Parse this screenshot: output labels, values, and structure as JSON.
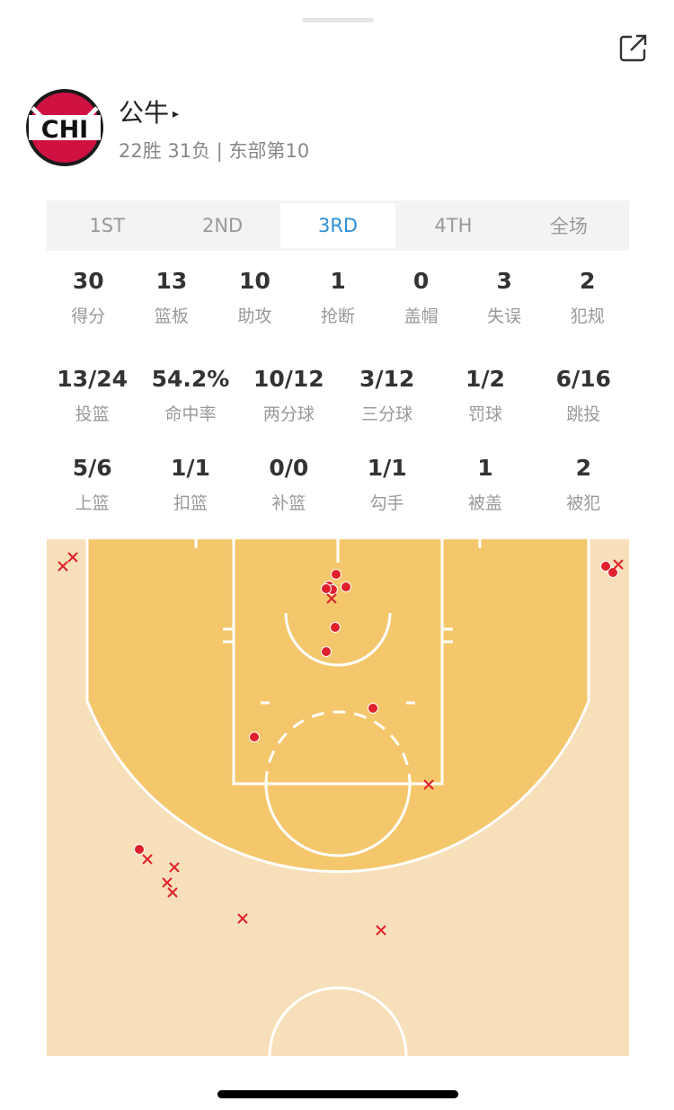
{
  "team": {
    "name": "公牛",
    "arrow": "▸",
    "record": "22胜 31负 | 东部第10",
    "logo_text": "CHI"
  },
  "tabs": [
    {
      "label": "1ST"
    },
    {
      "label": "2ND"
    },
    {
      "label": "3RD",
      "active": true
    },
    {
      "label": "4TH"
    },
    {
      "label": "全场"
    }
  ],
  "stats_row1": [
    {
      "v": "30",
      "l": "得分"
    },
    {
      "v": "13",
      "l": "篮板"
    },
    {
      "v": "10",
      "l": "助攻"
    },
    {
      "v": "1",
      "l": "抢断"
    },
    {
      "v": "0",
      "l": "盖帽"
    },
    {
      "v": "3",
      "l": "失误"
    },
    {
      "v": "2",
      "l": "犯规"
    }
  ],
  "stats_row2": [
    {
      "v": "13/24",
      "l": "投篮"
    },
    {
      "v": "54.2%",
      "l": "命中率"
    },
    {
      "v": "10/12",
      "l": "两分球"
    },
    {
      "v": "3/12",
      "l": "三分球"
    },
    {
      "v": "1/2",
      "l": "罚球"
    },
    {
      "v": "6/16",
      "l": "跳投"
    }
  ],
  "stats_row3": [
    {
      "v": "5/6",
      "l": "上篮"
    },
    {
      "v": "1/1",
      "l": "扣篮"
    },
    {
      "v": "0/0",
      "l": "补篮"
    },
    {
      "v": "1/1",
      "l": "勾手"
    },
    {
      "v": "1",
      "l": "被盖"
    },
    {
      "v": "2",
      "l": "被犯"
    }
  ],
  "colors": {
    "accent": "#2e8fd6",
    "court_outer": "#f7dfb9",
    "court_inner": "#f5c76c",
    "made": "#e0202c",
    "missed": "#e0202c"
  },
  "icons": {
    "share": "share-icon"
  }
}
